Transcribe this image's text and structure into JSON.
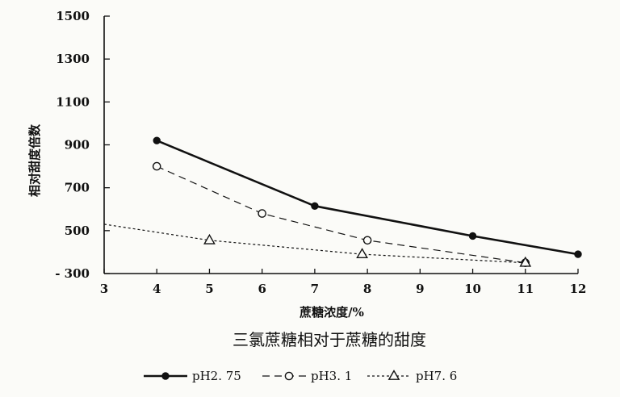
{
  "chart_data": {
    "type": "line",
    "title": "三氯蔗糖相对于蔗糖的甜度",
    "xlabel": "蔗糖浓度/%",
    "ylabel": "相对甜度倍数",
    "xlim": [
      3,
      12
    ],
    "ylim": [
      300,
      1500
    ],
    "x_ticks": [
      3,
      4,
      5,
      6,
      7,
      8,
      9,
      10,
      11,
      12
    ],
    "x_tick_labels": [
      "3",
      "4",
      "5",
      "6",
      "7",
      "8",
      "9",
      "10",
      "11",
      "12"
    ],
    "y_ticks": [
      300,
      500,
      700,
      900,
      1100,
      1300,
      1500
    ],
    "y_tick_labels": [
      "- 300",
      "500",
      "700",
      "900",
      "1100",
      "1300",
      "1500"
    ],
    "grid": false,
    "legend_position": "bottom",
    "series": [
      {
        "name": "pH2. 75",
        "marker": "filled-circle",
        "line_style": "solid",
        "line_weight": "bold",
        "x": [
          4,
          7,
          10,
          12
        ],
        "y": [
          920,
          615,
          475,
          390
        ]
      },
      {
        "name": "pH3. 1",
        "marker": "open-circle",
        "line_style": "dashed",
        "line_weight": "normal",
        "x": [
          4,
          6,
          8,
          11
        ],
        "y": [
          800,
          580,
          455,
          350
        ]
      },
      {
        "name": "pH7. 6",
        "marker": "open-triangle",
        "line_style": "dotted",
        "line_weight": "normal",
        "x": [
          3,
          5,
          7.9,
          11
        ],
        "y": [
          530,
          455,
          390,
          350
        ]
      }
    ]
  },
  "colors": {
    "ink": "#111111",
    "background": "#fbfbf8"
  }
}
